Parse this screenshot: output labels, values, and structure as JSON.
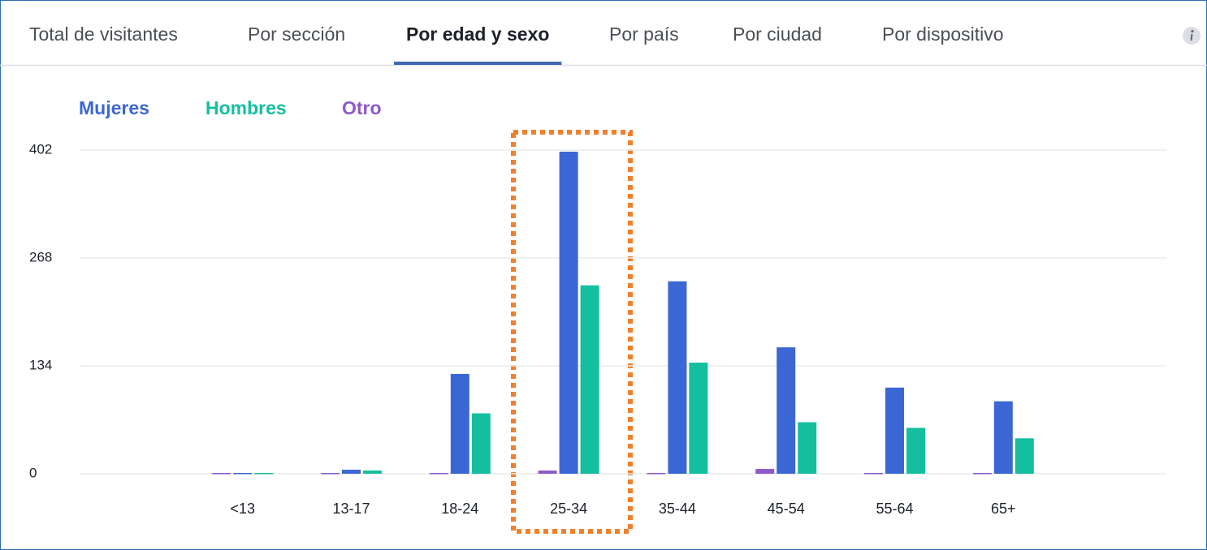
{
  "tabs": [
    "Total de visitantes",
    "Por sección",
    "Por edad y sexo",
    "Por país",
    "Por ciudad",
    "Por dispositivo"
  ],
  "active_tab": 2,
  "chart_data": {
    "type": "bar",
    "categories": [
      "<13",
      "13-17",
      "18-24",
      "25-34",
      "35-44",
      "45-54",
      "55-64",
      "65+"
    ],
    "series": [
      {
        "name": "Mujeres",
        "color": "#3b67d4",
        "values": [
          1,
          5,
          124,
          400,
          239,
          157,
          107,
          90
        ]
      },
      {
        "name": "Hombres",
        "color": "#14bfa0",
        "values": [
          1,
          4,
          75,
          234,
          138,
          64,
          57,
          44
        ]
      },
      {
        "name": "Otro",
        "color": "#8e59c9",
        "values": [
          1,
          1,
          1,
          4,
          1,
          6,
          1,
          1
        ]
      }
    ],
    "ylim": [
      0,
      402
    ],
    "yticks": [
      0,
      134,
      268,
      402
    ],
    "grid": true
  }
}
